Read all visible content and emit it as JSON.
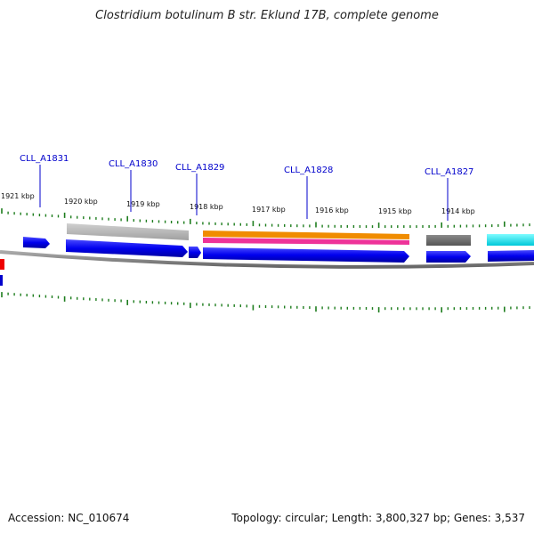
{
  "title": "Clostridium botulinum B str. Eklund 17B, complete genome",
  "footer": {
    "accession": "Accession: NC_010674",
    "summary": "Topology: circular; Length: 3,800,327 bp; Genes: 3,537"
  },
  "scale_labels": [
    "1921 kbp",
    "1920 kbp",
    "1919 kbp",
    "1918 kbp",
    "1917 kbp",
    "1916 kbp",
    "1915 kbp",
    "1914 kbp"
  ],
  "gene_labels": [
    "CLL_A1831",
    "CLL_A1830",
    "CLL_A1829",
    "CLL_A1828",
    "CLL_A1827"
  ],
  "colors": {
    "cds": "#0000ee",
    "grey_feature": "#b8b8b8",
    "dark_feature": "#6e6e6e",
    "orange_feature": "#f08c00",
    "pink_feature": "#ee3399",
    "cyan_feature": "#00e5ee",
    "red_feature": "#ee0000",
    "tick": "#1e7d1e",
    "label": "#0000cc",
    "backbone": "#7f7f7f"
  }
}
